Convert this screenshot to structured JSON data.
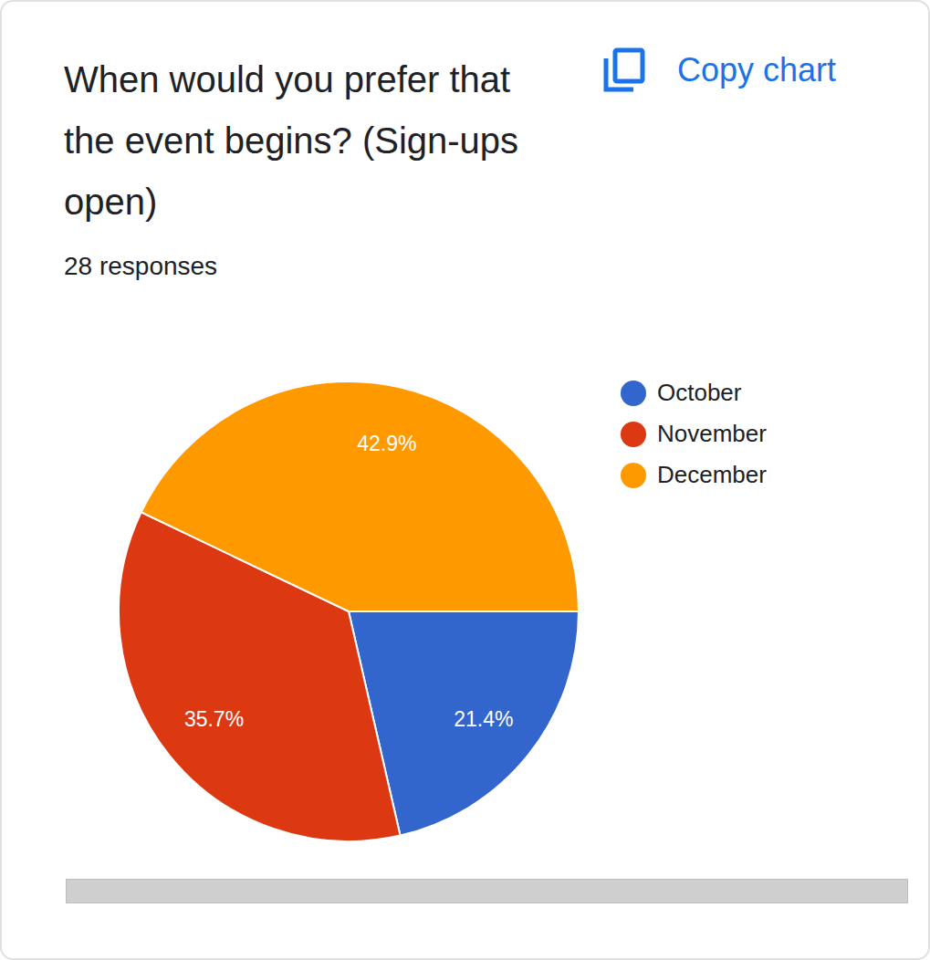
{
  "chart_data": {
    "type": "pie",
    "title": "When would you prefer that the event begins? (Sign-ups open)",
    "subtitle": "28 responses",
    "annotations": [
      "Copy chart"
    ],
    "categories": [
      "October",
      "November",
      "December"
    ],
    "values": [
      21.4,
      35.7,
      42.9
    ],
    "value_labels": [
      "21.4%",
      "35.7%",
      "42.9%"
    ],
    "colors": [
      "#3366cc",
      "#dc3912",
      "#ff9900"
    ],
    "data_labels": true,
    "legend": "right"
  }
}
